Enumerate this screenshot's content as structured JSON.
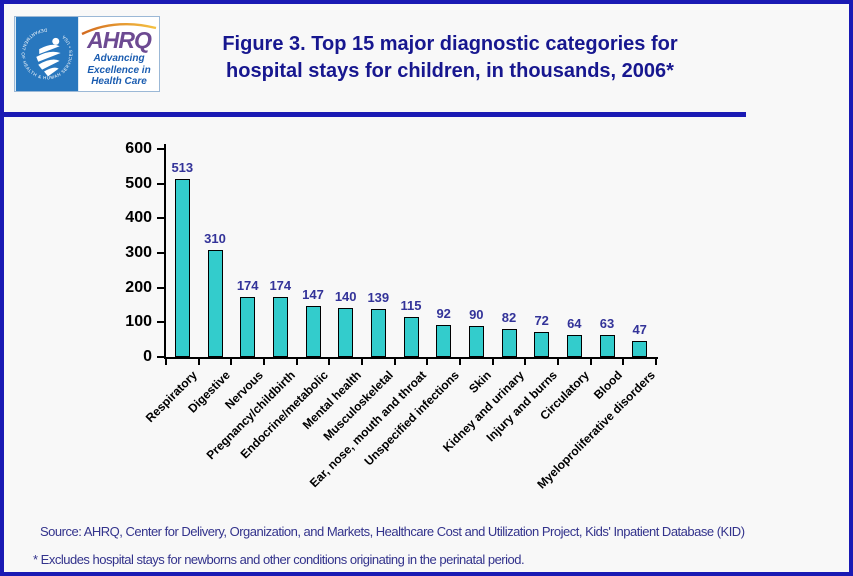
{
  "page": {
    "background": "#f8f8f8",
    "border_color": "#1a1ab4"
  },
  "header": {
    "title_line1": "Figure 3. Top 15 major diagnostic categories for",
    "title_line2": "hospital stays for children, in thousands, 2006*",
    "logo": {
      "seal_text": "DEPARTMENT OF HEALTH & HUMAN SERVICES • USA",
      "brand": "AHRQ",
      "tagline_line1": "Advancing",
      "tagline_line2": "Excellence in",
      "tagline_line3": "Health Care"
    }
  },
  "chart_data": {
    "type": "bar",
    "title": "Figure 3. Top 15 major diagnostic categories for hospital stays for children, in thousands, 2006*",
    "categories": [
      "Respiratory",
      "Digestive",
      "Nervous",
      "Pregnancy/childbirth",
      "Endocrine/metabolic",
      "Mental health",
      "Musculoskeletal",
      "Ear, nose, mouth and throat",
      "Unspecified infections",
      "Skin",
      "Kidney and urinary",
      "Injury and burns",
      "Circulatory",
      "Blood",
      "Myeloproliferative disorders"
    ],
    "values": [
      513,
      310,
      174,
      174,
      147,
      140,
      139,
      115,
      92,
      90,
      82,
      72,
      64,
      63,
      47
    ],
    "xlabel": "",
    "ylabel": "",
    "ylim": [
      0,
      600
    ],
    "yticks": [
      0,
      100,
      200,
      300,
      400,
      500,
      600
    ],
    "grid": false,
    "legend": "none",
    "bar_color": "#33cccc",
    "bar_border_color": "#000000",
    "value_label_color": "#333399",
    "axis_color": "#000000",
    "xlabel_rotation_deg": -45
  },
  "footer": {
    "source": "Source: AHRQ, Center for Delivery, Organization, and Markets, Healthcare Cost and Utilization Project, Kids' Inpatient Database (KID)",
    "note": "* Excludes hospital stays for newborns and other conditions originating in the perinatal period."
  }
}
